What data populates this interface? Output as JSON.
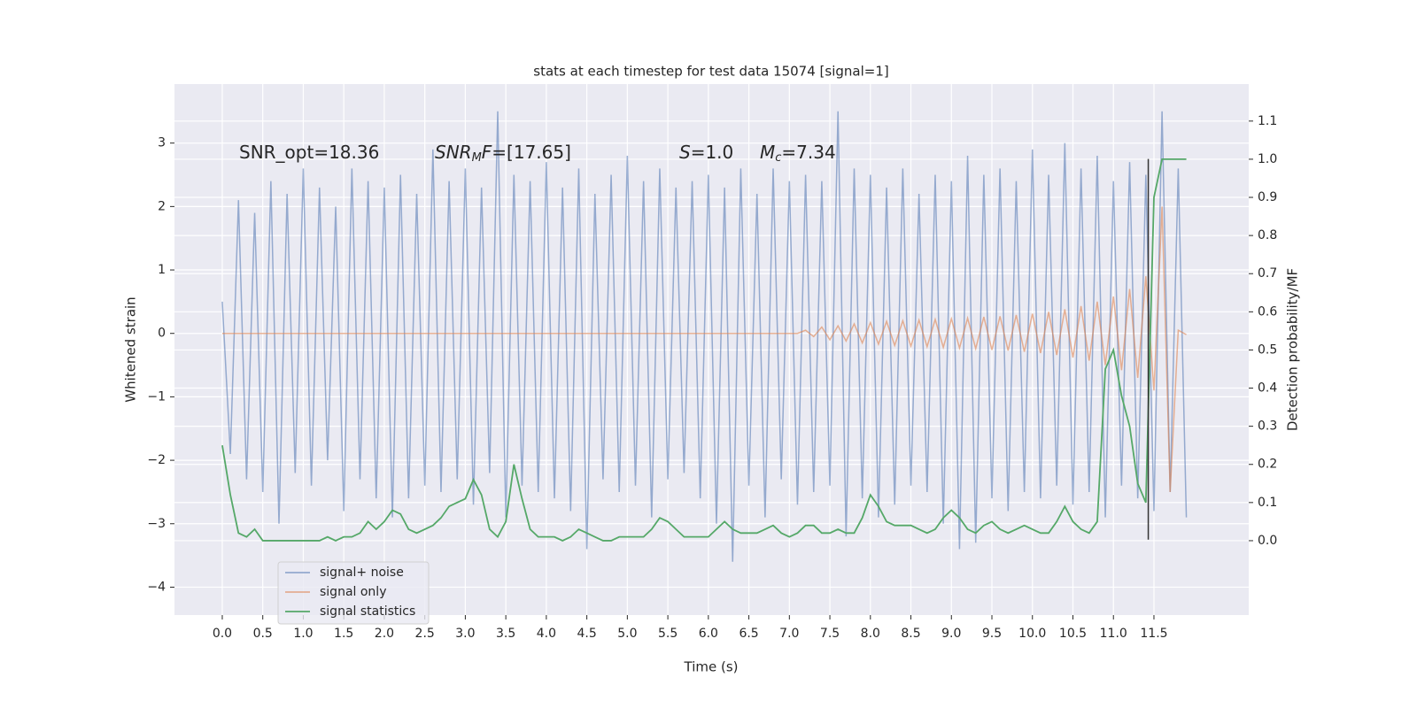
{
  "chart_data": {
    "type": "line",
    "title": "stats at each timestep for test data 15074 [signal=1]",
    "x_label": "Time (s)",
    "y_label": "Whitened strain",
    "y2_label": "Detection probability/MF",
    "annotations": [
      {
        "parts": [
          {
            "text": "SNR_opt=18.36",
            "style": "normal"
          }
        ]
      },
      {
        "parts": [
          {
            "text": "SNR",
            "style": "italic"
          },
          {
            "text": "M",
            "style": "sub"
          },
          {
            "text": "F",
            "style": "italic"
          },
          {
            "text": "=[17.65]",
            "style": "normal"
          }
        ]
      },
      {
        "parts": [
          {
            "text": "S",
            "style": "italic"
          },
          {
            "text": "=1.0",
            "style": "normal"
          }
        ]
      },
      {
        "parts": [
          {
            "text": "M",
            "style": "italic"
          },
          {
            "text": "c",
            "style": "sub"
          },
          {
            "text": "=7.34",
            "style": "normal"
          }
        ]
      }
    ],
    "x": [
      0,
      0.1,
      0.2,
      0.3,
      0.4,
      0.5,
      0.6,
      0.7,
      0.8,
      0.9,
      1,
      1.1,
      1.2,
      1.3,
      1.4,
      1.5,
      1.6,
      1.7,
      1.8,
      1.9,
      2,
      2.1,
      2.2,
      2.3,
      2.4,
      2.5,
      2.6,
      2.7,
      2.8,
      2.9,
      3,
      3.1,
      3.2,
      3.3,
      3.4,
      3.5,
      3.6,
      3.7,
      3.8,
      3.9,
      4,
      4.1,
      4.2,
      4.3,
      4.4,
      4.5,
      4.6,
      4.7,
      4.8,
      4.9,
      5,
      5.1,
      5.2,
      5.3,
      5.4,
      5.5,
      5.6,
      5.7,
      5.8,
      5.9,
      6,
      6.1,
      6.2,
      6.3,
      6.4,
      6.5,
      6.6,
      6.7,
      6.8,
      6.9,
      7,
      7.1,
      7.2,
      7.3,
      7.4,
      7.5,
      7.6,
      7.7,
      7.8,
      7.9,
      8,
      8.1,
      8.2,
      8.3,
      8.4,
      8.5,
      8.6,
      8.7,
      8.8,
      8.9,
      9,
      9.1,
      9.2,
      9.3,
      9.4,
      9.5,
      9.6,
      9.7,
      9.8,
      9.9,
      10,
      10.1,
      10.2,
      10.3,
      10.4,
      10.5,
      10.6,
      10.7,
      10.8,
      10.9,
      11,
      11.1,
      11.2,
      11.3,
      11.4,
      11.5,
      11.6,
      11.7,
      11.8,
      11.9
    ],
    "series": [
      {
        "name": "signal+ noise",
        "color": "#4c72b0",
        "opacity": 0.55,
        "values": [
          0.5,
          -1.9,
          2.1,
          -2.3,
          1.9,
          -2.5,
          2.4,
          -3.0,
          2.2,
          -2.2,
          2.6,
          -2.4,
          2.3,
          -2.0,
          2.0,
          -2.8,
          2.6,
          -2.3,
          2.4,
          -2.6,
          2.3,
          -2.9,
          2.5,
          -2.6,
          2.2,
          -2.4,
          2.9,
          -2.5,
          2.4,
          -2.3,
          2.6,
          -2.7,
          2.3,
          -2.2,
          3.5,
          -2.9,
          2.5,
          -2.4,
          2.4,
          -2.5,
          2.7,
          -2.6,
          2.3,
          -2.8,
          2.6,
          -3.4,
          2.2,
          -2.3,
          2.5,
          -2.5,
          2.8,
          -2.4,
          2.4,
          -2.9,
          2.6,
          -2.3,
          2.3,
          -2.2,
          2.4,
          -2.6,
          2.5,
          -3.0,
          2.3,
          -3.6,
          2.6,
          -2.4,
          2.2,
          -2.9,
          2.6,
          -2.3,
          2.4,
          -2.7,
          2.5,
          -2.5,
          2.4,
          -2.4,
          3.5,
          -3.2,
          2.6,
          -2.6,
          2.5,
          -2.9,
          2.3,
          -2.7,
          2.6,
          -2.4,
          2.2,
          -2.5,
          2.5,
          -3.0,
          2.4,
          -3.4,
          2.8,
          -3.3,
          2.5,
          -2.6,
          2.6,
          -2.8,
          2.4,
          -2.5,
          2.9,
          -2.6,
          2.5,
          -2.4,
          3.0,
          -2.7,
          2.6,
          -2.5,
          2.8,
          -2.9,
          2.4,
          -2.4,
          2.7,
          -2.6,
          2.5,
          -2.8,
          3.5,
          -2.5,
          2.6,
          -2.9
        ]
      },
      {
        "name": "signal only",
        "color": "#dd8452",
        "opacity": 0.6,
        "values": [
          0,
          0,
          0,
          0,
          0,
          0,
          0,
          0,
          0,
          0,
          0,
          0,
          0,
          0,
          0,
          0,
          0,
          0,
          0,
          0,
          0,
          0,
          0,
          0,
          0,
          0,
          0,
          0,
          0,
          0,
          0,
          0,
          0,
          0,
          0,
          0,
          0,
          0,
          0,
          0,
          0,
          0,
          0,
          0,
          0,
          0,
          0,
          0,
          0,
          0,
          0,
          0,
          0,
          0,
          0,
          0,
          0,
          0,
          0,
          0,
          0,
          0,
          0,
          0,
          0,
          0,
          0,
          0,
          0,
          0,
          0,
          0,
          0.05,
          -0.05,
          0.1,
          -0.1,
          0.12,
          -0.12,
          0.15,
          -0.15,
          0.17,
          -0.17,
          0.19,
          -0.19,
          0.2,
          -0.2,
          0.21,
          -0.21,
          0.22,
          -0.22,
          0.23,
          -0.23,
          0.24,
          -0.24,
          0.26,
          -0.26,
          0.27,
          -0.27,
          0.29,
          -0.29,
          0.31,
          -0.31,
          0.34,
          -0.34,
          0.38,
          -0.38,
          0.43,
          -0.43,
          0.5,
          -0.5,
          0.58,
          -0.58,
          0.7,
          -0.7,
          0.9,
          -0.9,
          2.0,
          -2.5,
          0.05,
          -0.02
        ]
      },
      {
        "name": "signal statistics",
        "color": "#55a868",
        "opacity": 1,
        "axis": "y2",
        "values": [
          0.25,
          0.12,
          0.02,
          0.01,
          0.03,
          0,
          0,
          0,
          0,
          0,
          0,
          0,
          0,
          0.01,
          0,
          0.01,
          0.01,
          0.02,
          0.05,
          0.03,
          0.05,
          0.08,
          0.07,
          0.03,
          0.02,
          0.03,
          0.04,
          0.06,
          0.09,
          0.1,
          0.11,
          0.16,
          0.12,
          0.03,
          0.01,
          0.05,
          0.2,
          0.11,
          0.03,
          0.01,
          0.01,
          0.01,
          0,
          0.01,
          0.03,
          0.02,
          0.01,
          0,
          0,
          0.01,
          0.01,
          0.01,
          0.01,
          0.03,
          0.06,
          0.05,
          0.03,
          0.01,
          0.01,
          0.01,
          0.01,
          0.03,
          0.05,
          0.03,
          0.02,
          0.02,
          0.02,
          0.03,
          0.04,
          0.02,
          0.01,
          0.02,
          0.04,
          0.04,
          0.02,
          0.02,
          0.03,
          0.02,
          0.02,
          0.06,
          0.12,
          0.09,
          0.05,
          0.04,
          0.04,
          0.04,
          0.03,
          0.02,
          0.03,
          0.06,
          0.08,
          0.06,
          0.03,
          0.02,
          0.04,
          0.05,
          0.03,
          0.02,
          0.03,
          0.04,
          0.03,
          0.02,
          0.02,
          0.05,
          0.09,
          0.05,
          0.03,
          0.02,
          0.05,
          0.45,
          0.5,
          0.38,
          0.3,
          0.15,
          0.1,
          0.9,
          1.0,
          1.0,
          1.0,
          1.0
        ]
      }
    ],
    "event_marker": {
      "x": 11.43,
      "ymin": -3.25,
      "ymax": 2.75,
      "color": "#333333"
    },
    "xlim": [
      -0.59,
      12.67
    ],
    "ylim": [
      -4.44,
      3.93
    ],
    "y2lim": [
      -0.195,
      1.197
    ],
    "xticks": [
      {
        "value": 0,
        "label": "0.0"
      },
      {
        "value": 0.5,
        "label": "0.5"
      },
      {
        "value": 1,
        "label": "1.0"
      },
      {
        "value": 1.5,
        "label": "1.5"
      },
      {
        "value": 2,
        "label": "2.0"
      },
      {
        "value": 2.5,
        "label": "2.5"
      },
      {
        "value": 3,
        "label": "3.0"
      },
      {
        "value": 3.5,
        "label": "3.5"
      },
      {
        "value": 4,
        "label": "4.0"
      },
      {
        "value": 4.5,
        "label": "4.5"
      },
      {
        "value": 5,
        "label": "5.0"
      },
      {
        "value": 5.5,
        "label": "5.5"
      },
      {
        "value": 6,
        "label": "6.0"
      },
      {
        "value": 6.5,
        "label": "6.5"
      },
      {
        "value": 7,
        "label": "7.0"
      },
      {
        "value": 7.5,
        "label": "7.5"
      },
      {
        "value": 8,
        "label": "8.0"
      },
      {
        "value": 8.5,
        "label": "8.5"
      },
      {
        "value": 9,
        "label": "9.0"
      },
      {
        "value": 9.5,
        "label": "9.5"
      },
      {
        "value": 10,
        "label": "10.0"
      },
      {
        "value": 10.5,
        "label": "10.5"
      },
      {
        "value": 11,
        "label": "11.0"
      },
      {
        "value": 11.5,
        "label": "11.5"
      }
    ],
    "yticks": [
      {
        "value": -4,
        "label": "−4"
      },
      {
        "value": -3,
        "label": "−3"
      },
      {
        "value": -2,
        "label": "−2"
      },
      {
        "value": -1,
        "label": "−1"
      },
      0,
      1,
      2,
      3
    ],
    "y2ticks": [
      {
        "value": 0,
        "label": "0.0"
      },
      {
        "value": 0.1,
        "label": "0.1"
      },
      {
        "value": 0.2,
        "label": "0.2"
      },
      {
        "value": 0.3,
        "label": "0.3"
      },
      {
        "value": 0.4,
        "label": "0.4"
      },
      {
        "value": 0.5,
        "label": "0.5"
      },
      {
        "value": 0.6,
        "label": "0.6"
      },
      {
        "value": 0.7,
        "label": "0.7"
      },
      {
        "value": 0.8,
        "label": "0.8"
      },
      {
        "value": 0.9,
        "label": "0.9"
      },
      {
        "value": 1,
        "label": "1.0"
      },
      {
        "value": 1.1,
        "label": "1.1"
      }
    ],
    "grid": true,
    "legend": "lower left"
  }
}
